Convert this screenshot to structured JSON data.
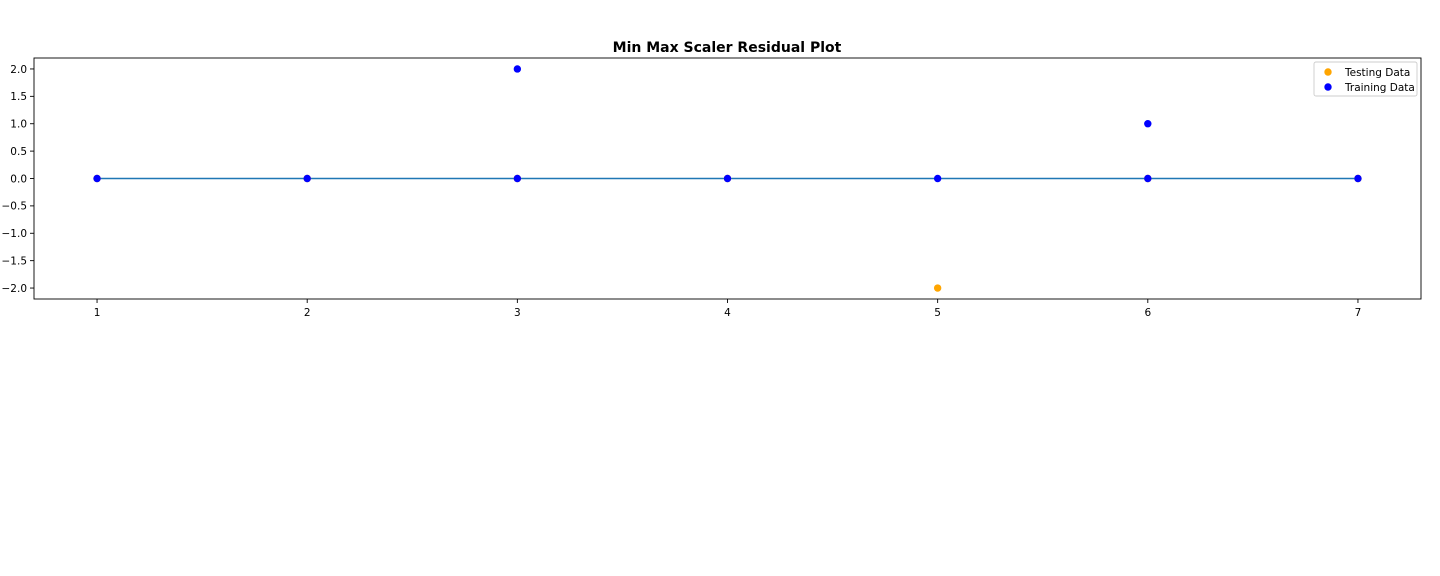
{
  "chart_data": {
    "type": "scatter",
    "title": "Min Max Scaler Residual Plot",
    "xlabel": "",
    "ylabel": "",
    "xlim": [
      0.7,
      7.3
    ],
    "ylim": [
      -2.2,
      2.2
    ],
    "xticks": [
      1,
      2,
      3,
      4,
      5,
      6,
      7
    ],
    "yticks": [
      2.0,
      1.5,
      1.0,
      0.5,
      0.0,
      -0.5,
      -1.0,
      -1.5,
      -2.0
    ],
    "ytick_labels": [
      "2.0",
      "1.5",
      "1.0",
      "0.5",
      "0.0",
      "−0.5",
      "−1.0",
      "−1.5",
      "−2.0"
    ],
    "grid": false,
    "legend_position": "top-right",
    "hline": {
      "y": 0,
      "xmin": 1,
      "xmax": 7,
      "color": "#1f77b4"
    },
    "series": [
      {
        "name": "Testing Data",
        "color": "#ffa500",
        "points": [
          [
            5,
            -2
          ],
          [
            1,
            0
          ],
          [
            2,
            0
          ],
          [
            3,
            0
          ],
          [
            4,
            0
          ],
          [
            6,
            0
          ],
          [
            7,
            0
          ]
        ]
      },
      {
        "name": "Training Data",
        "color": "#0000ff",
        "points": [
          [
            1,
            0
          ],
          [
            2,
            0
          ],
          [
            3,
            2
          ],
          [
            3,
            0
          ],
          [
            4,
            0
          ],
          [
            5,
            0
          ],
          [
            6,
            1
          ],
          [
            6,
            0
          ],
          [
            7,
            0
          ]
        ]
      }
    ]
  }
}
